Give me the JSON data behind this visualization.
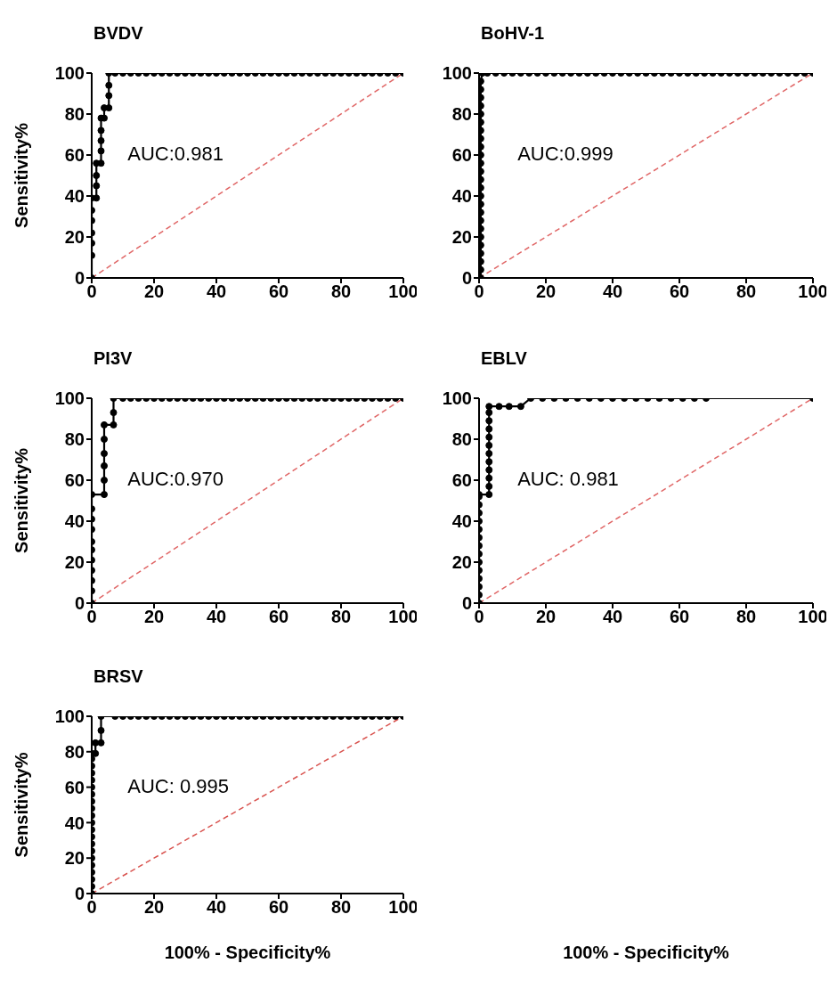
{
  "chart_data": [
    {
      "type": "line",
      "title": "BVDV",
      "ylabel": "Sensitivity%",
      "xlim": [
        0,
        100
      ],
      "ylim": [
        0,
        100
      ],
      "xticks": [
        0,
        20,
        40,
        60,
        80,
        100
      ],
      "yticks": [
        0,
        20,
        40,
        60,
        80,
        100
      ],
      "annotations": [
        "AUC:0.981"
      ],
      "series": [
        {
          "type": "line",
          "color": "#000000",
          "marker": "circle",
          "line_style": "solid",
          "x": [
            0,
            0,
            0,
            0,
            0,
            0,
            0,
            1.5,
            1.5,
            1.5,
            1.5,
            3,
            3,
            3,
            3,
            3,
            4,
            4,
            5.5,
            5.5,
            5.5,
            5.5,
            7.5,
            10,
            12.5,
            15,
            17.5,
            20,
            22.5,
            25,
            27.5,
            30,
            32.5,
            35,
            37.5,
            40,
            42.5,
            45,
            47.5,
            50,
            52.5,
            55,
            57.5,
            60,
            62.5,
            65,
            67.5,
            70,
            72.5,
            75,
            77.5,
            80,
            82.5,
            85,
            87.5,
            90,
            92.5,
            95,
            97.5,
            100
          ],
          "values": [
            0,
            11,
            17,
            22,
            28,
            33,
            39,
            39,
            45,
            50,
            56,
            56,
            62,
            67,
            72,
            78,
            78,
            83,
            83,
            89,
            94,
            100,
            100,
            100,
            100,
            100,
            100,
            100,
            100,
            100,
            100,
            100,
            100,
            100,
            100,
            100,
            100,
            100,
            100,
            100,
            100,
            100,
            100,
            100,
            100,
            100,
            100,
            100,
            100,
            100,
            100,
            100,
            100,
            100,
            100,
            100,
            100,
            100,
            100,
            100
          ]
        },
        {
          "type": "line",
          "color": "#e06666",
          "marker": "none",
          "line_style": "dashed",
          "x": [
            0,
            100
          ],
          "values": [
            0,
            100
          ]
        }
      ]
    },
    {
      "type": "line",
      "title": "BoHV-1",
      "xlim": [
        0,
        100
      ],
      "ylim": [
        0,
        100
      ],
      "xticks": [
        0,
        20,
        40,
        60,
        80,
        100
      ],
      "yticks": [
        0,
        20,
        40,
        60,
        80,
        100
      ],
      "annotations": [
        "AUC:0.999"
      ],
      "series": [
        {
          "type": "line",
          "color": "#000000",
          "marker": "circle",
          "line_style": "solid",
          "x": [
            0.5,
            0.5,
            0.5,
            0.5,
            0.5,
            0.5,
            0.5,
            0.5,
            0.5,
            0.5,
            0.5,
            0.5,
            0.5,
            0.5,
            0.5,
            0.5,
            0.5,
            0.5,
            0.5,
            0.5,
            0.5,
            0.5,
            0.5,
            0.5,
            0.5,
            1,
            2.5,
            5,
            7.5,
            10,
            12.5,
            15,
            17.5,
            20,
            22.5,
            25,
            27.5,
            30,
            32.5,
            35,
            37.5,
            40,
            42.5,
            45,
            47.5,
            50,
            52.5,
            55,
            57.5,
            60,
            62.5,
            65,
            67.5,
            70,
            72.5,
            75,
            77.5,
            80,
            82.5,
            85,
            87.5,
            90,
            92.5,
            95,
            97.5,
            100
          ],
          "values": [
            0,
            4,
            8,
            12,
            16,
            20,
            24,
            28,
            32,
            36,
            40,
            44,
            48,
            52,
            56,
            60,
            64,
            68,
            72,
            76,
            80,
            84,
            88,
            92,
            96,
            100,
            100,
            100,
            100,
            100,
            100,
            100,
            100,
            100,
            100,
            100,
            100,
            100,
            100,
            100,
            100,
            100,
            100,
            100,
            100,
            100,
            100,
            100,
            100,
            100,
            100,
            100,
            100,
            100,
            100,
            100,
            100,
            100,
            100,
            100,
            100,
            100,
            100,
            100,
            100,
            100
          ]
        },
        {
          "type": "line",
          "color": "#e06666",
          "marker": "none",
          "line_style": "dashed",
          "x": [
            0,
            100
          ],
          "values": [
            0,
            100
          ]
        }
      ]
    },
    {
      "type": "line",
      "title": "PI3V",
      "ylabel": "Sensitivity%",
      "xlim": [
        0,
        100
      ],
      "ylim": [
        0,
        100
      ],
      "xticks": [
        0,
        20,
        40,
        60,
        80,
        100
      ],
      "yticks": [
        0,
        20,
        40,
        60,
        80,
        100
      ],
      "annotations": [
        "AUC:0.970"
      ],
      "series": [
        {
          "type": "line",
          "color": "#000000",
          "marker": "circle",
          "line_style": "solid",
          "x": [
            0,
            0,
            0,
            0,
            0,
            0,
            0,
            0,
            0,
            0,
            0,
            4,
            4,
            4,
            4,
            4,
            4,
            7,
            7,
            7,
            10,
            12.5,
            15,
            17.5,
            20,
            22.5,
            25,
            27.5,
            30,
            32.5,
            35,
            37.5,
            40,
            42.5,
            45,
            47.5,
            50,
            52.5,
            55,
            57.5,
            60,
            62.5,
            65,
            67.5,
            70,
            72.5,
            75,
            77.5,
            80,
            82.5,
            85,
            87.5,
            90,
            92.5,
            95,
            97.5,
            100
          ],
          "values": [
            0,
            6,
            11,
            16,
            21,
            26,
            30,
            36,
            41,
            46,
            53,
            53,
            60,
            67,
            73,
            80,
            87,
            87,
            93,
            100,
            100,
            100,
            100,
            100,
            100,
            100,
            100,
            100,
            100,
            100,
            100,
            100,
            100,
            100,
            100,
            100,
            100,
            100,
            100,
            100,
            100,
            100,
            100,
            100,
            100,
            100,
            100,
            100,
            100,
            100,
            100,
            100,
            100,
            100,
            100,
            100,
            100
          ]
        },
        {
          "type": "line",
          "color": "#e06666",
          "marker": "none",
          "line_style": "dashed",
          "x": [
            0,
            100
          ],
          "values": [
            0,
            100
          ]
        }
      ]
    },
    {
      "type": "line",
      "title": "EBLV",
      "xlabel": "100% - Specificity%",
      "xlim": [
        0,
        100
      ],
      "ylim": [
        0,
        100
      ],
      "xticks": [
        0,
        20,
        40,
        60,
        80,
        100
      ],
      "yticks": [
        0,
        20,
        40,
        60,
        80,
        100
      ],
      "annotations": [
        "AUC: 0.981"
      ],
      "series": [
        {
          "type": "line",
          "color": "#000000",
          "marker": "circle",
          "line_style": "solid",
          "x": [
            0,
            0,
            0,
            0,
            0,
            0,
            0,
            0,
            0,
            0,
            0,
            0,
            0,
            0,
            0,
            3,
            3,
            3,
            3,
            3,
            3,
            3,
            3,
            3,
            3,
            3,
            3,
            6,
            9,
            12.5,
            15.5,
            19,
            22.5,
            26,
            29.5,
            33,
            36.5,
            40,
            43.5,
            47,
            50.5,
            54,
            57.5,
            61,
            64.5,
            68,
            100
          ],
          "values": [
            0,
            4,
            8,
            12,
            16,
            20,
            24,
            28,
            32,
            36,
            40,
            44,
            48,
            52,
            53,
            53,
            57,
            61,
            65,
            69,
            73,
            77,
            81,
            85,
            89,
            93,
            96,
            96,
            96,
            96,
            100,
            100,
            100,
            100,
            100,
            100,
            100,
            100,
            100,
            100,
            100,
            100,
            100,
            100,
            100,
            100,
            100
          ]
        },
        {
          "type": "line",
          "color": "#e06666",
          "marker": "none",
          "line_style": "dashed",
          "x": [
            0,
            100
          ],
          "values": [
            0,
            100
          ]
        }
      ]
    },
    {
      "type": "line",
      "title": "BRSV",
      "ylabel": "Sensitivity%",
      "xlabel": "100% - Specificity%",
      "xlim": [
        0,
        100
      ],
      "ylim": [
        0,
        100
      ],
      "xticks": [
        0,
        20,
        40,
        60,
        80,
        100
      ],
      "yticks": [
        0,
        20,
        40,
        60,
        80,
        100
      ],
      "annotations": [
        "AUC: 0.995"
      ],
      "series": [
        {
          "type": "line",
          "color": "#000000",
          "marker": "circle",
          "line_style": "solid",
          "x": [
            0,
            0,
            0,
            0,
            0,
            0,
            0,
            0,
            0,
            0,
            0,
            0,
            0,
            0,
            0,
            0,
            0,
            0,
            0,
            0,
            0,
            1.2,
            1.2,
            3,
            3,
            3,
            7.5,
            10,
            12.5,
            15,
            17.5,
            20,
            22.5,
            25,
            27.5,
            30,
            32.5,
            35,
            37.5,
            40,
            42.5,
            45,
            47.5,
            50,
            52.5,
            55,
            57.5,
            60,
            62.5,
            65,
            67.5,
            70,
            72.5,
            75,
            77.5,
            80,
            82.5,
            85,
            87.5,
            90,
            92.5,
            95,
            97.5,
            100
          ],
          "values": [
            0,
            4,
            8,
            12,
            16,
            20,
            24,
            28,
            32,
            36,
            40,
            44,
            48,
            52,
            56,
            60,
            64,
            68,
            72,
            76,
            79,
            79,
            85,
            85,
            92,
            100,
            100,
            100,
            100,
            100,
            100,
            100,
            100,
            100,
            100,
            100,
            100,
            100,
            100,
            100,
            100,
            100,
            100,
            100,
            100,
            100,
            100,
            100,
            100,
            100,
            100,
            100,
            100,
            100,
            100,
            100,
            100,
            100,
            100,
            100,
            100,
            100,
            100,
            100
          ]
        },
        {
          "type": "line",
          "color": "#d9534f",
          "marker": "none",
          "line_style": "dashed",
          "x": [
            0,
            100
          ],
          "values": [
            0,
            100
          ]
        }
      ]
    }
  ]
}
